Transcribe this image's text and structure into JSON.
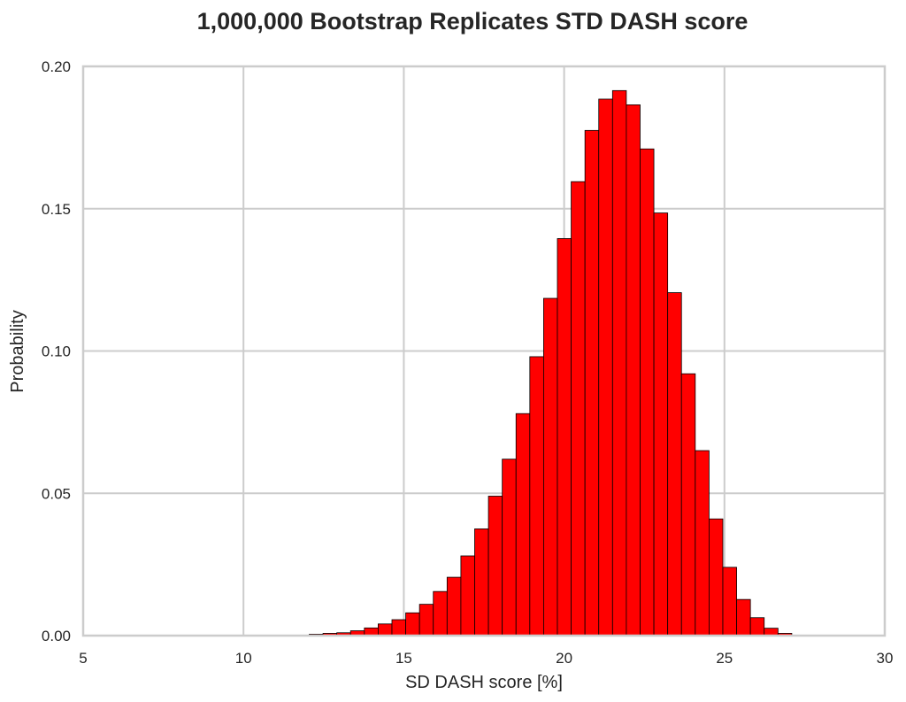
{
  "chart_data": {
    "type": "bar",
    "title": "1,000,000 Bootstrap Replicates STD DASH score",
    "xlabel": "SD DASH score [%]",
    "ylabel": "Probability",
    "xlim": [
      5,
      30
    ],
    "ylim": [
      0,
      0.2
    ],
    "xticks": [
      5,
      10,
      15,
      20,
      25,
      30
    ],
    "xtick_labels": [
      "5",
      "10",
      "15",
      "20",
      "25",
      "30"
    ],
    "yticks": [
      0,
      0.05,
      0.1,
      0.15,
      0.2
    ],
    "ytick_labels": [
      "0.00",
      "0.05",
      "0.10",
      "0.15",
      "0.20"
    ],
    "grid": true,
    "legend": "none",
    "bar_color": "#ff0000",
    "bin_edges": [
      12.05,
      12.48,
      12.91,
      13.34,
      13.77,
      14.2,
      14.63,
      15.06,
      15.49,
      15.92,
      16.35,
      16.78,
      17.21,
      17.64,
      18.07,
      18.5,
      18.93,
      19.36,
      19.79,
      20.22,
      20.65,
      21.08,
      21.51,
      21.94,
      22.37,
      22.8,
      23.23,
      23.66,
      24.09,
      24.52,
      24.95,
      25.38,
      25.81,
      26.24,
      26.67,
      27.1
    ],
    "values": [
      0.0005,
      0.0008,
      0.001,
      0.0017,
      0.0027,
      0.0041,
      0.0056,
      0.008,
      0.011,
      0.0155,
      0.0205,
      0.028,
      0.0375,
      0.049,
      0.062,
      0.078,
      0.098,
      0.1185,
      0.1395,
      0.1595,
      0.1775,
      0.1885,
      0.1915,
      0.1865,
      0.171,
      0.1485,
      0.1205,
      0.092,
      0.065,
      0.041,
      0.024,
      0.0127,
      0.0063,
      0.0026,
      0.0008
    ]
  }
}
